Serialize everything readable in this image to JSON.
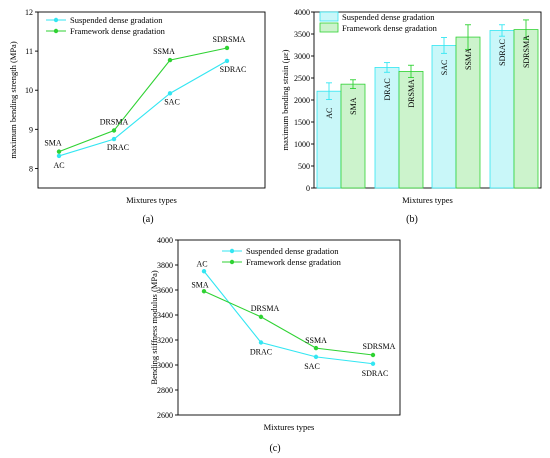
{
  "colors": {
    "suspended": "#33e6f2",
    "framework": "#2fd233",
    "bar_suspended": "#c9f7f9",
    "bar_framework": "#ccf3cc"
  },
  "panels": [
    {
      "label": "(a)"
    },
    {
      "label": "(b)"
    },
    {
      "label": "(c)"
    }
  ],
  "chart_data": [
    {
      "type": "line",
      "xlabel": "Mixtures types",
      "ylabel": "maximum bending strength (MPa)",
      "ylim": [
        7.5,
        12
      ],
      "yticks": [
        8,
        9,
        10,
        11,
        12
      ],
      "legend": "top-left",
      "series": [
        {
          "name": "Suspended dense gradation",
          "color": "#33e6f2",
          "values": [
            8.32,
            8.75,
            9.92,
            10.75
          ],
          "labels": [
            "AC",
            "DRAC",
            "SAC",
            "SDRAC"
          ]
        },
        {
          "name": "Framework dense gradation",
          "color": "#2fd233",
          "values": [
            8.43,
            8.97,
            10.77,
            11.08
          ],
          "labels": [
            "SMA",
            "DRSMA",
            "SSMA",
            "SDRSMA"
          ]
        }
      ]
    },
    {
      "type": "bar",
      "xlabel": "Mixtures types",
      "ylabel": "maximum bending strain (με)",
      "ylim": [
        0,
        4000
      ],
      "yticks": [
        0,
        500,
        1000,
        1500,
        2000,
        2500,
        3000,
        3500,
        4000
      ],
      "legend": "top-left",
      "series": [
        {
          "name": "Suspended dense gradation",
          "values": [
            2200,
            2740,
            3240,
            3580
          ],
          "errors": [
            190,
            110,
            180,
            130
          ],
          "labels": [
            "AC",
            "DRAC",
            "SAC",
            "SDRAC"
          ]
        },
        {
          "name": "Framework dense gradation",
          "values": [
            2360,
            2650,
            3430,
            3600
          ],
          "errors": [
            100,
            140,
            280,
            220
          ],
          "labels": [
            "SMA",
            "DRSMA",
            "SSMA",
            "SDRSMA"
          ]
        }
      ]
    },
    {
      "type": "line",
      "xlabel": "Mixtures types",
      "ylabel": "Bending stiffness modulus (MPa)",
      "ylim": [
        2600,
        4000
      ],
      "yticks": [
        2600,
        2800,
        3000,
        3200,
        3400,
        3600,
        3800,
        4000
      ],
      "legend": "top-left",
      "series": [
        {
          "name": "Suspended dense gradation",
          "color": "#33e6f2",
          "values": [
            3750,
            3180,
            3065,
            3010
          ],
          "labels": [
            "AC",
            "DRAC",
            "SAC",
            "SDRAC"
          ]
        },
        {
          "name": "Framework dense gradation",
          "color": "#2fd233",
          "values": [
            3590,
            3385,
            3135,
            3080
          ],
          "labels": [
            "SMA",
            "DRSMA",
            "SSMA",
            "SDRSMA"
          ]
        }
      ]
    }
  ]
}
